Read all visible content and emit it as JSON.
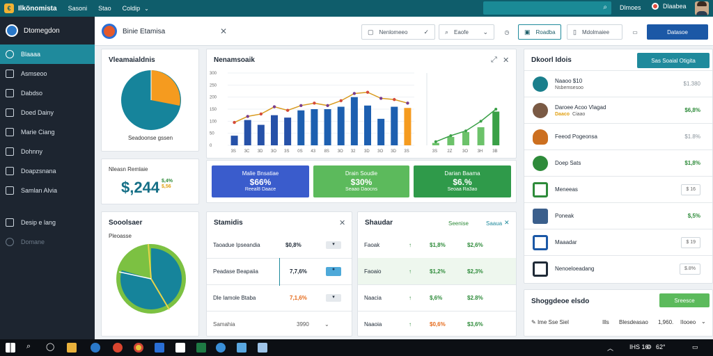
{
  "topbar": {
    "app_name": "Ilkönomista",
    "menu": [
      "Sasoni",
      "Stao",
      "Coldip"
    ],
    "search_placeholder": "",
    "link": "Dlmoes",
    "user": "Dlaabea"
  },
  "sidebar": {
    "brand": "Dtomegdon",
    "items": [
      {
        "label": "Blaaaa"
      },
      {
        "label": "Asmseoo"
      },
      {
        "label": "Dabdso"
      },
      {
        "label": "Doed Dainy"
      },
      {
        "label": "Marie Ciang"
      },
      {
        "label": "Dohnny"
      },
      {
        "label": "Doapzsnana"
      },
      {
        "label": "Samlan Alvia"
      },
      {
        "label": "Desip e lang"
      },
      {
        "label": "Domane"
      }
    ]
  },
  "tabbar": {
    "tab_title": "Binie Etamisa",
    "buttons": [
      {
        "label": "Nenlomeeo"
      },
      {
        "label": "Eaofe"
      },
      {
        "label": "Roadba"
      },
      {
        "label": "Mdolmaiee"
      },
      {
        "label": "Datasoe"
      }
    ]
  },
  "pie_card": {
    "title": "Vleamaialdnis",
    "caption": "Seadoonse gssen",
    "colors": {
      "main": "#16849b",
      "accent": "#f59b1f"
    }
  },
  "stat_card": {
    "label": "Nleasn Remlaie",
    "value": "$,244",
    "change_top": "$,4%",
    "change_bottom": "$,56"
  },
  "chart_card": {
    "title": "Nenamsoaik"
  },
  "chart_data": {
    "type": "bar",
    "categories": [
      "3S",
      "3C",
      "3D",
      "3O",
      "3S",
      "0S",
      "43",
      "8S",
      "3O",
      "32",
      "3D",
      "3O",
      "3D",
      "3S"
    ],
    "y_ticks": [
      "300",
      "250",
      "200",
      "150",
      "100",
      "50",
      "0"
    ],
    "ylim": [
      0,
      300
    ],
    "series": [
      {
        "values": [
          40,
          105,
          85,
          125,
          115,
          145,
          150,
          150,
          160,
          200,
          165,
          110,
          160,
          155
        ]
      },
      {
        "values": [
          95,
          120,
          130,
          160,
          145,
          165,
          175,
          165,
          185,
          215,
          220,
          195,
          190,
          175
        ]
      }
    ],
    "bar_colors": [
      "#2651a8",
      "#2651a8",
      "#2651a8",
      "#2651a8",
      "#2651a8",
      "#1d5fb0",
      "#1d5fb0",
      "#1d5fb0",
      "#1d5fb0",
      "#1d5fb0",
      "#1d5fb0",
      "#1d5fb0",
      "#1d5fb0",
      "#f59b1f"
    ],
    "series2": {
      "type": "line+bar",
      "categories": [
        "3S",
        "2Z",
        "3O",
        "3H",
        "3B"
      ],
      "bar_values": [
        10,
        35,
        55,
        75,
        140
      ],
      "line_values": [
        15,
        40,
        60,
        100,
        150
      ]
    }
  },
  "kpis": [
    {
      "label": "Malie Bnsatiae",
      "value": "$66%",
      "sub": "Reeal8 Daace",
      "color": "#3a5ccc"
    },
    {
      "label": "Drain Soudie",
      "value": "$30%",
      "sub": "Seaao Daocns",
      "color": "#5cba5c"
    },
    {
      "label": "Darian Baama",
      "value": "$6.% ",
      "sub": "Seoaa Ra3ao",
      "color": "#2f9a4a"
    }
  ],
  "donut_card": {
    "title": "Sooolsaer",
    "subtitle": "Pleoasse"
  },
  "sessions": {
    "title": "Stamidis",
    "rows": [
      {
        "label": "Taoadue Ipseandia",
        "value": "$0,8%",
        "value_color": "#1f2a37"
      },
      {
        "label": "Peadase Beapaiia",
        "value": "7,7,6%",
        "value_color": "#1f2a37"
      },
      {
        "label": "Dle Iamole Btaba",
        "value": "7,1,6%",
        "value_color": "#e56a1a"
      },
      {
        "label": "Samahia",
        "value": "3990",
        "value_color": "#555"
      }
    ]
  },
  "table": {
    "title": "Shaudar",
    "col1": "Seenise",
    "col2": "Saaua",
    "rows": [
      {
        "name": "Faoak",
        "a": "$1,8%",
        "b": "$2,6%",
        "a_color": "#2e8b3a",
        "b_color": "#2e8b3a"
      },
      {
        "name": "Faoaio",
        "a": "$1,2%",
        "b": "$2,3%",
        "a_color": "#2e8b3a",
        "b_color": "#2e8b3a"
      },
      {
        "name": "Naacia",
        "a": "$,6%",
        "b": "$2.8%",
        "a_color": "#2e8b3a",
        "b_color": "#2e8b3a"
      },
      {
        "name": "Naaoia",
        "a": "$0,6%",
        "b": "$3,6%",
        "a_color": "#e56a1a",
        "b_color": "#2e8b3a"
      }
    ]
  },
  "right_panel": {
    "title": "Dkoorl Idois",
    "button": "Sas Soaial Otigita",
    "items": [
      {
        "name": "Naaoo $10",
        "sub": "Nsbemsesoo",
        "amount": "$1.380",
        "kind": "gray",
        "color": "#1a7f8c"
      },
      {
        "name": "Daroee Acoo Vlagad",
        "sub_b": "Daaco",
        "sub": "Ciaao",
        "amount": "$6,8%",
        "kind": "green",
        "color": "#7a5a44"
      },
      {
        "name": "Feeod Pogeonsa",
        "sub": "",
        "amount": "$1.8%",
        "kind": "gray",
        "color": "#cc6f1f"
      },
      {
        "name": "Doep Sats",
        "sub": "",
        "amount": "$1,8%",
        "kind": "green",
        "color": "#2e8b3a"
      },
      {
        "name": "Meneeas",
        "sub": "",
        "amount": "$ 16",
        "kind": "badge",
        "color": "#2e8b3a"
      },
      {
        "name": "Poneak",
        "sub": "",
        "amount": "$,5%",
        "kind": "green",
        "color": "#3b5f8c"
      },
      {
        "name": "Maaadar",
        "sub": "",
        "amount": "$ 19",
        "kind": "badge",
        "color": "#1b58a6"
      },
      {
        "name": "Nenoeloeadang",
        "sub": "",
        "amount": "$.8%",
        "kind": "badge",
        "color": "#1f2a37"
      }
    ]
  },
  "footer_card": {
    "title": "Shoggdeoe elsdo",
    "button": "Sreesce",
    "left": "Ime Sse Siel",
    "mid1": "Ills",
    "mid2": "Blesdeasao",
    "right": "1,960.",
    "right2": "IIooeo"
  },
  "taskbar": {
    "tray_text": "IHS 16",
    "clock": "62°"
  }
}
